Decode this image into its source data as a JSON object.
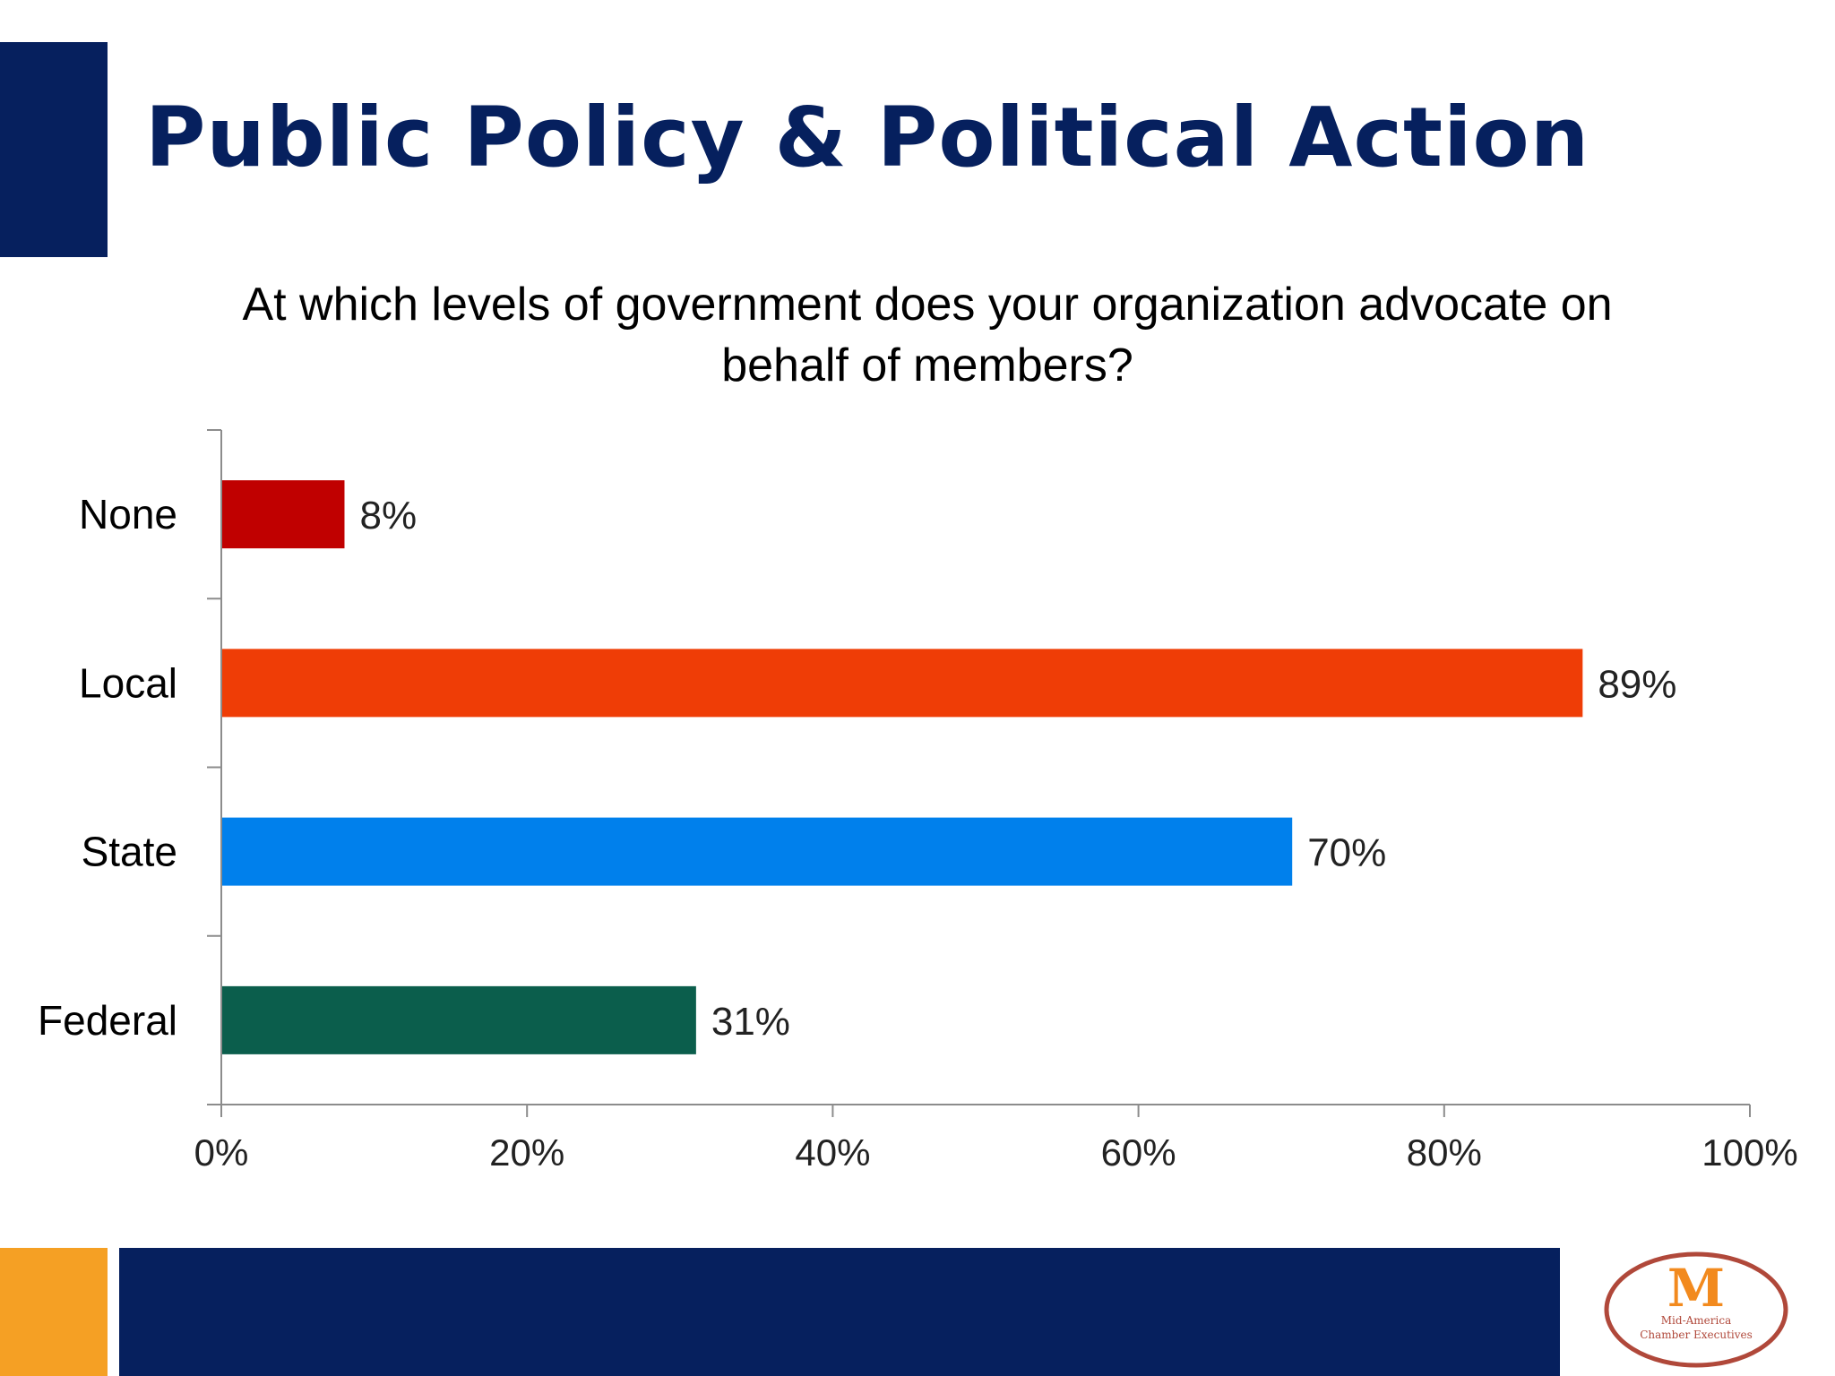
{
  "slide": {
    "title": "Public Policy & Political Action",
    "question": "At which levels of government does your organization advocate on behalf of members?"
  },
  "chart_data": {
    "type": "bar",
    "orientation": "horizontal",
    "categories": [
      "None",
      "Local",
      "State",
      "Federal"
    ],
    "values": [
      8,
      89,
      70,
      31
    ],
    "data_labels": [
      "8%",
      "89%",
      "70%",
      "31%"
    ],
    "colors": [
      "#c00000",
      "#ef3d06",
      "#0080ec",
      "#0b5e4c"
    ],
    "xlim": [
      0,
      100
    ],
    "x_ticks": [
      0,
      20,
      40,
      60,
      80,
      100
    ],
    "x_tick_labels": [
      "0%",
      "20%",
      "40%",
      "60%",
      "80%",
      "100%"
    ],
    "grid": false,
    "legend": "none"
  },
  "logo": {
    "mark": "M",
    "text_line1": "Mid-America",
    "text_line2": "Chamber Executives",
    "colors": {
      "ring": "#b0483a",
      "mark": "#f28a1e",
      "text": "#b0483a"
    }
  },
  "theme": {
    "navy": "#06205e",
    "orange": "#f5a024"
  }
}
